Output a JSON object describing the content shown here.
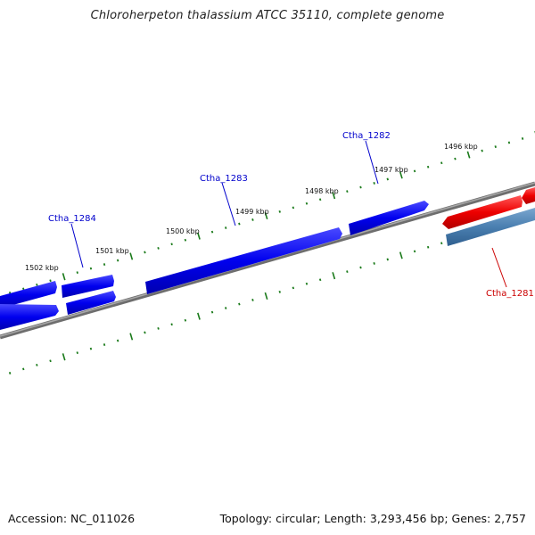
{
  "title": "Chloroherpeton thalassium ATCC 35110, complete genome",
  "footer": {
    "accession": "Accession: NC_011026",
    "summary": "Topology: circular; Length: 3,293,456 bp; Genes: 2,757"
  },
  "colors": {
    "backbone": "#808080",
    "ticks": "#1a7a1a",
    "forward_gene": "#0000ee",
    "reverse_gene": "#ee0000",
    "other_gene": "#4a7fb0",
    "forward_label": "#0000cc",
    "reverse_label": "#cc0000"
  },
  "kbp_labels": [
    "1502 kbp",
    "1501 kbp",
    "1500 kbp",
    "1499 kbp",
    "1498 kbp",
    "1497 kbp",
    "1496 kbp"
  ],
  "gene_labels": {
    "ctha_1284": "Ctha_1284",
    "ctha_1283": "Ctha_1283",
    "ctha_1282": "Ctha_1282",
    "ctha_1281": "Ctha_1281"
  }
}
